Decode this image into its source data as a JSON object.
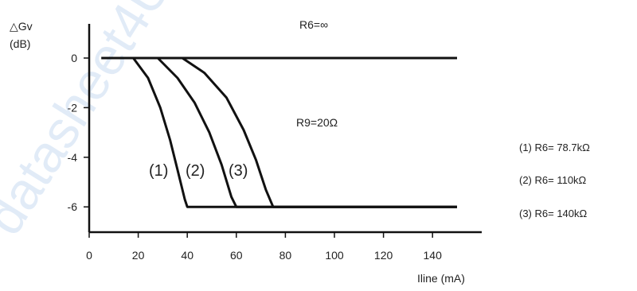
{
  "chart_data": {
    "type": "line",
    "ylabel_line1": "△Gv",
    "ylabel_line2": "(dB)",
    "xlabel": "Iline (mA)",
    "xlim": [
      0,
      150
    ],
    "ylim": [
      -7,
      1.5
    ],
    "x_ticks": [
      "0",
      "20",
      "40",
      "60",
      "80",
      "100",
      "120",
      "140"
    ],
    "y_ticks": [
      "0",
      "-2",
      "-4",
      "-6"
    ],
    "grid": false,
    "legend_position": "right",
    "annotations": {
      "r6_infinite": "R6=∞",
      "r9": "R9=20Ω"
    },
    "series": [
      {
        "label": "(1)",
        "legend": "(1)  R6=  78.7kΩ",
        "points": [
          [
            5,
            0
          ],
          [
            18,
            0
          ],
          [
            24,
            -0.8
          ],
          [
            29,
            -2
          ],
          [
            33,
            -3.3
          ],
          [
            36,
            -4.5
          ],
          [
            39,
            -5.7
          ],
          [
            40,
            -6
          ],
          [
            150,
            -6
          ]
        ]
      },
      {
        "label": "(2)",
        "legend": "(2)  R6=  110kΩ",
        "points": [
          [
            5,
            0
          ],
          [
            28,
            0
          ],
          [
            36,
            -0.8
          ],
          [
            43,
            -1.8
          ],
          [
            49,
            -3
          ],
          [
            54,
            -4.3
          ],
          [
            58,
            -5.6
          ],
          [
            60,
            -6
          ],
          [
            150,
            -6
          ]
        ]
      },
      {
        "label": "(3)",
        "legend": "(3)  R6=  140kΩ",
        "points": [
          [
            5,
            0
          ],
          [
            38,
            0
          ],
          [
            47,
            -0.6
          ],
          [
            56,
            -1.6
          ],
          [
            63,
            -2.9
          ],
          [
            68,
            -4.1
          ],
          [
            72,
            -5.3
          ],
          [
            75,
            -6
          ],
          [
            150,
            -6
          ]
        ]
      },
      {
        "label": "",
        "legend": "",
        "points": [
          [
            5,
            0
          ],
          [
            150,
            0
          ]
        ]
      }
    ]
  },
  "watermark": "datasheet4U.com"
}
